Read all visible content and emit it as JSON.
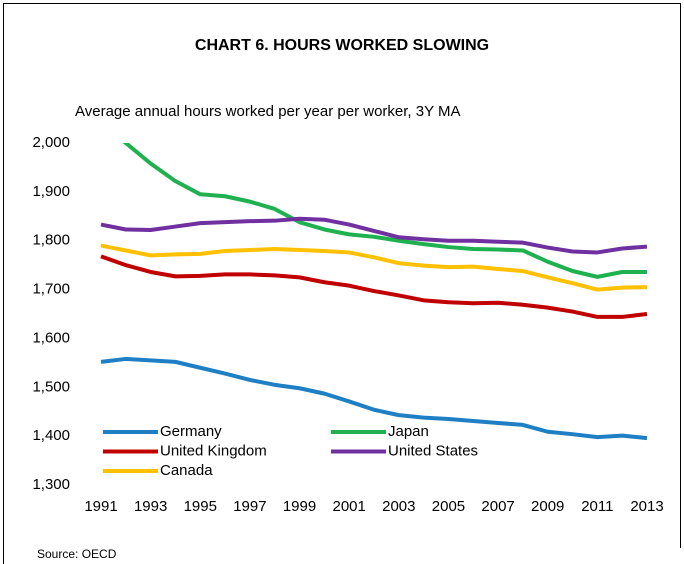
{
  "chart_data": {
    "type": "line",
    "title": "CHART 6. HOURS WORKED SLOWING",
    "subtitle": "Average annual hours worked per year per worker, 3Y MA",
    "source": "Source: OECD",
    "x": [
      1991,
      1992,
      1993,
      1994,
      1995,
      1996,
      1997,
      1998,
      1999,
      2000,
      2001,
      2002,
      2003,
      2004,
      2005,
      2006,
      2007,
      2008,
      2009,
      2010,
      2011,
      2012,
      2013
    ],
    "xlim": [
      1991,
      2013
    ],
    "xticks": [
      1991,
      1993,
      1995,
      1997,
      1999,
      2001,
      2003,
      2005,
      2007,
      2009,
      2011,
      2013
    ],
    "ylim": [
      1300,
      2000
    ],
    "yticks": [
      {
        "value": 1300,
        "label": "1,300"
      },
      {
        "value": 1400,
        "label": "1,400"
      },
      {
        "value": 1500,
        "label": "1,500"
      },
      {
        "value": 1600,
        "label": "1,600"
      },
      {
        "value": 1700,
        "label": "1,700"
      },
      {
        "value": 1800,
        "label": "1,800"
      },
      {
        "value": 1900,
        "label": "1,900"
      },
      {
        "value": 2000,
        "label": "2,000"
      }
    ],
    "grid": false,
    "legend": "bottom-left",
    "series": [
      {
        "name": "Germany",
        "color": "#1f7fc4",
        "values": [
          1552,
          1558,
          1555,
          1552,
          1540,
          1528,
          1515,
          1505,
          1498,
          1487,
          1471,
          1454,
          1443,
          1438,
          1435,
          1431,
          1427,
          1423,
          1409,
          1404,
          1398,
          1401,
          1396
        ]
      },
      {
        "name": "Japan",
        "color": "#1fb04f",
        "values": [
          2040,
          2000,
          1958,
          1922,
          1895,
          1891,
          1880,
          1865,
          1838,
          1823,
          1813,
          1808,
          1800,
          1793,
          1787,
          1783,
          1782,
          1780,
          1757,
          1738,
          1726,
          1736,
          1736
        ]
      },
      {
        "name": "United Kingdom",
        "color": "#c00000",
        "values": [
          1768,
          1750,
          1736,
          1727,
          1728,
          1731,
          1731,
          1729,
          1725,
          1715,
          1708,
          1697,
          1688,
          1678,
          1674,
          1672,
          1673,
          1669,
          1663,
          1655,
          1644,
          1644,
          1650
        ]
      },
      {
        "name": "United States",
        "color": "#7030a0",
        "values": [
          1833,
          1823,
          1822,
          1829,
          1836,
          1838,
          1840,
          1841,
          1845,
          1843,
          1833,
          1820,
          1807,
          1803,
          1800,
          1800,
          1798,
          1796,
          1786,
          1778,
          1776,
          1784,
          1788
        ]
      },
      {
        "name": "Canada",
        "color": "#ffc000",
        "values": [
          1790,
          1780,
          1770,
          1772,
          1773,
          1779,
          1781,
          1783,
          1781,
          1779,
          1776,
          1766,
          1754,
          1749,
          1746,
          1747,
          1742,
          1738,
          1725,
          1713,
          1700,
          1704,
          1705
        ]
      }
    ]
  }
}
